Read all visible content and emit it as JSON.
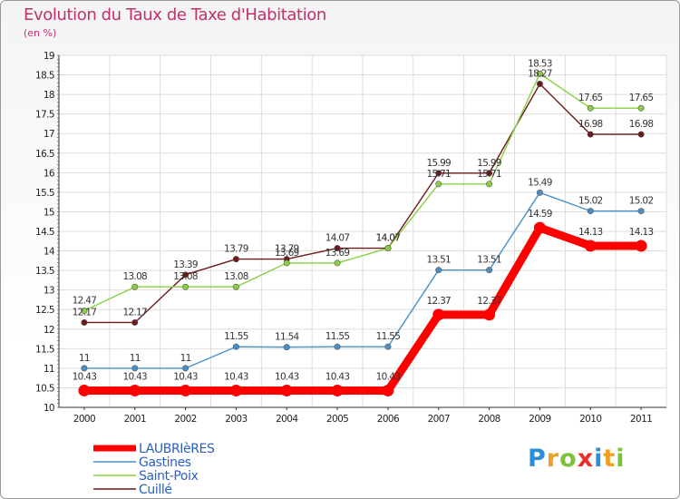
{
  "chart_data": {
    "type": "line",
    "title": "Evolution du Taux de Taxe d'Habitation",
    "subtitle": "(en %)",
    "categories": [
      "2000",
      "2001",
      "2002",
      "2003",
      "2004",
      "2005",
      "2006",
      "2007",
      "2008",
      "2009",
      "2010",
      "2011"
    ],
    "ylim": [
      10,
      19
    ],
    "yticks": [
      "10",
      "10.5",
      "11",
      "11.5",
      "12",
      "12.5",
      "13",
      "13.5",
      "14",
      "14.5",
      "15",
      "15.5",
      "16",
      "16.5",
      "17",
      "17.5",
      "18",
      "18.5",
      "19"
    ],
    "grid": true,
    "legend_position": "bottom-left",
    "series": [
      {
        "name": "LAUBRIèRES",
        "color": "#ff0000",
        "values": [
          10.43,
          10.43,
          10.43,
          10.43,
          10.43,
          10.43,
          10.43,
          12.37,
          12.37,
          14.59,
          14.13,
          14.13
        ],
        "labels": [
          "10.43",
          "10.43",
          "10.43",
          "10.43",
          "10.43",
          "10.43",
          "10.43",
          "12.37",
          "12.37",
          "14.59",
          "14.13",
          "14.13"
        ]
      },
      {
        "name": "Gastines",
        "color": "#4a90c8",
        "values": [
          11,
          11,
          11,
          11.55,
          11.54,
          11.55,
          11.55,
          13.51,
          13.51,
          15.49,
          15.02,
          15.02
        ],
        "labels": [
          "11",
          "11",
          "11",
          "11.55",
          "11.54",
          "11.55",
          "11.55",
          "13.51",
          "13.51",
          "15.49",
          "15.02",
          "15.02"
        ]
      },
      {
        "name": "Saint-Poix",
        "color": "#88d040",
        "values": [
          12.47,
          13.08,
          13.08,
          13.08,
          13.69,
          13.69,
          14.07,
          15.71,
          15.71,
          18.53,
          17.65,
          17.65
        ],
        "labels": [
          "12.47",
          "13.08",
          "13.08",
          "13.08",
          "13.69",
          "13.69",
          "14.07",
          "15.71",
          "15.71",
          "18.53",
          "17.65",
          "17.65"
        ]
      },
      {
        "name": "Cuillé",
        "color": "#6b1a1a",
        "values": [
          12.17,
          12.17,
          13.39,
          13.79,
          13.79,
          14.07,
          14.07,
          15.99,
          15.99,
          18.27,
          16.98,
          16.98
        ],
        "labels": [
          "12.17",
          "12.17",
          "13.39",
          "13.79",
          "13.79",
          "14.07",
          "14.07",
          "15.99",
          "15.99",
          "18.27",
          "16.98",
          "16.98"
        ]
      }
    ]
  },
  "logo": {
    "letters": [
      "P",
      "r",
      "o",
      "x",
      "i",
      "t",
      "i"
    ]
  }
}
